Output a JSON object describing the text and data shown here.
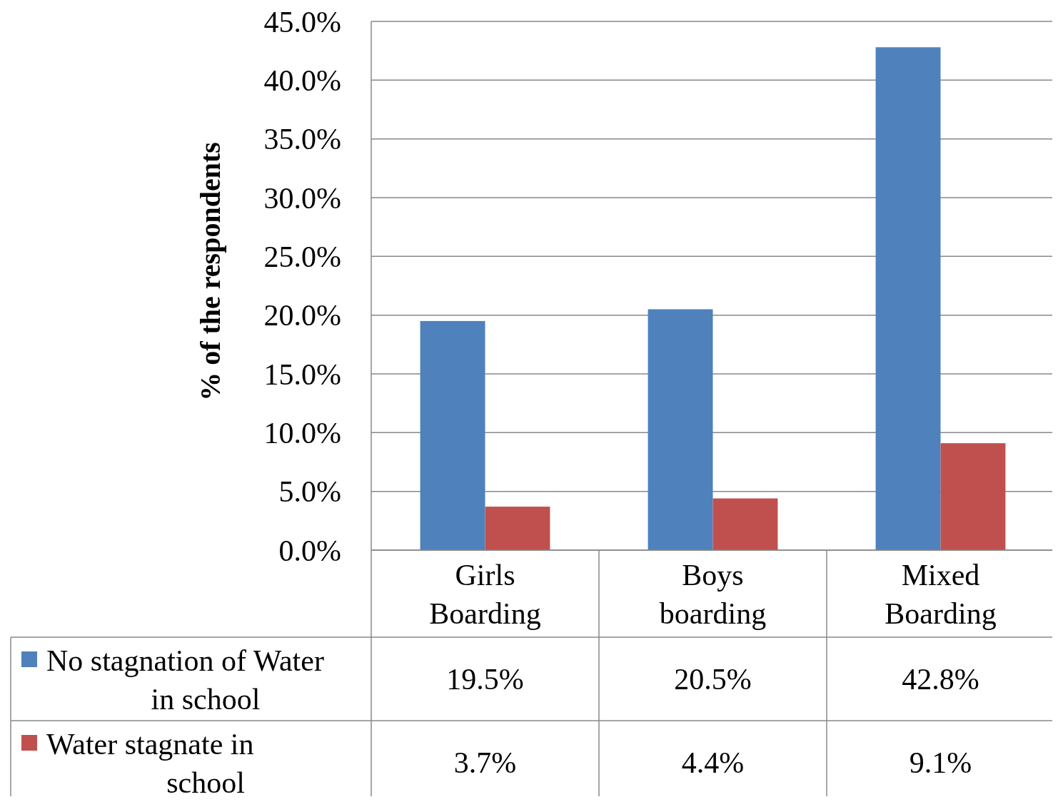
{
  "chart_data": {
    "type": "bar",
    "ylabel": "% of the respondents",
    "categories": [
      "Girls Boarding",
      "Boys boarding",
      "Mixed Boarding"
    ],
    "series": [
      {
        "name": "No stagnation of Water in school",
        "color": "#4f81bd",
        "values": [
          19.5,
          20.5,
          42.8
        ],
        "value_labels": [
          "19.5%",
          "20.5%",
          "42.8%"
        ]
      },
      {
        "name": "Water stagnate in school",
        "color": "#c0504d",
        "values": [
          3.7,
          4.4,
          9.1
        ],
        "value_labels": [
          "3.7%",
          "4.4%",
          "9.1%"
        ]
      }
    ],
    "ylim": [
      0,
      45
    ],
    "yticks": [
      {
        "value": 0,
        "label": "0.0%"
      },
      {
        "value": 5,
        "label": "5.0%"
      },
      {
        "value": 10,
        "label": "10.0%"
      },
      {
        "value": 15,
        "label": "15.0%"
      },
      {
        "value": 20,
        "label": "20.0%"
      },
      {
        "value": 25,
        "label": "25.0%"
      },
      {
        "value": 30,
        "label": "30.0%"
      },
      {
        "value": 35,
        "label": "35.0%"
      },
      {
        "value": 40,
        "label": "40.0%"
      },
      {
        "value": 45,
        "label": "45.0%"
      }
    ],
    "grid": "y",
    "legend": "bottom"
  }
}
